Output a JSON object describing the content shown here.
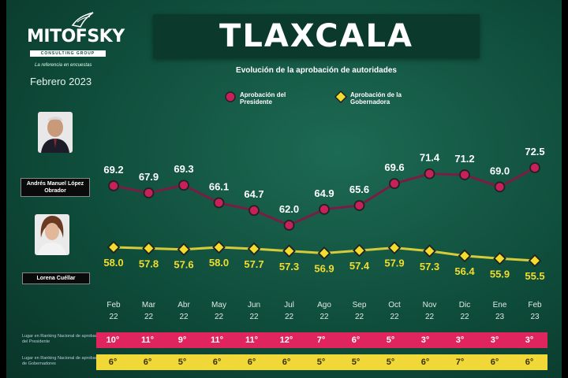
{
  "brand": {
    "name": "MITOFSKY",
    "bar_text": "CONSULTING GROUP",
    "tagline": "La referencia en encuestas",
    "date": "Febrero 2023"
  },
  "title": "TLAXCALA",
  "subtitle": "Evolución de la aprobación de autoridades",
  "legend": {
    "president": "Aprobación del Presidente",
    "governor": "Aprobación de la Gobernadora"
  },
  "people": {
    "president": "Andrés Manuel López Obrador",
    "governor": "Lorena Cuéllar"
  },
  "ranking_labels": {
    "president": "Lugar en Ranking Nacional de aprobación del Presidente",
    "governor": "Lugar en Ranking Nacional de aprobación de Gobernadores"
  },
  "colors": {
    "president": "#c8215a",
    "president_line": "#7a1d44",
    "governor": "#f2dd2e",
    "governor_line": "#d6cc3a"
  },
  "chart_data": {
    "type": "line",
    "title": "TLAXCALA",
    "subtitle": "Evolución de la aprobación de autoridades",
    "categories": [
      [
        "Feb",
        "22"
      ],
      [
        "Mar",
        "22"
      ],
      [
        "Abr",
        "22"
      ],
      [
        "May",
        "22"
      ],
      [
        "Jun",
        "22"
      ],
      [
        "Jul",
        "22"
      ],
      [
        "Ago",
        "22"
      ],
      [
        "Sep",
        "22"
      ],
      [
        "Oct",
        "22"
      ],
      [
        "Nov",
        "22"
      ],
      [
        "Dic",
        "22"
      ],
      [
        "Ene",
        "23"
      ],
      [
        "Feb",
        "23"
      ]
    ],
    "series": [
      {
        "name": "Aprobación del Presidente",
        "values": [
          69.2,
          67.9,
          69.3,
          66.1,
          64.7,
          62.0,
          64.9,
          65.6,
          69.6,
          71.4,
          71.2,
          69.0,
          72.5
        ],
        "labels": [
          "69.2",
          "67.9",
          "69.3",
          "66.1",
          "64.7",
          "62.0",
          "64.9",
          "65.6",
          "69.6",
          "71.4",
          "71.2",
          "69.0",
          "72.5"
        ]
      },
      {
        "name": "Aprobación de la Gobernadora",
        "values": [
          58.0,
          57.8,
          57.6,
          58.0,
          57.7,
          57.3,
          56.9,
          57.4,
          57.9,
          57.3,
          56.4,
          55.9,
          55.5
        ],
        "labels": [
          "58.0",
          "57.8",
          "57.6",
          "58.0",
          "57.7",
          "57.3",
          "56.9",
          "57.4",
          "57.9",
          "57.3",
          "56.4",
          "55.9",
          "55.5"
        ]
      }
    ],
    "rankings": {
      "president": [
        "10°",
        "11°",
        "9°",
        "11°",
        "11°",
        "12°",
        "7°",
        "6°",
        "5°",
        "3°",
        "3°",
        "3°",
        "3°"
      ],
      "governor": [
        "6°",
        "6°",
        "5°",
        "6°",
        "6°",
        "6°",
        "5°",
        "5°",
        "5°",
        "6°",
        "7°",
        "6°",
        "6°"
      ]
    },
    "legend_position": "top",
    "grid": false
  }
}
